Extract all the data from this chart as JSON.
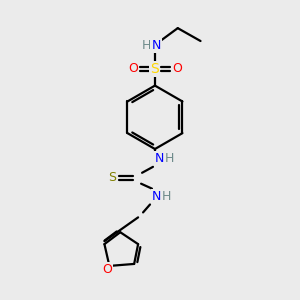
{
  "bg_color": "#ebebeb",
  "atom_colors": {
    "C": "#000000",
    "H": "#6e8b8b",
    "N": "#0000FF",
    "O": "#FF0000",
    "S_sulfonamide": "#FFD700",
    "S_thio": "#808000"
  },
  "bond_color": "#000000",
  "bond_width": 1.6,
  "figsize": [
    3.0,
    3.0
  ],
  "dpi": 100
}
